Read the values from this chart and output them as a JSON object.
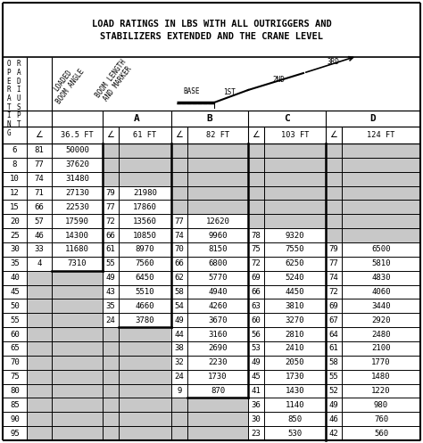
{
  "title_line1": "LOAD RATINGS IN LBS WITH ALL OUTRIGGERS AND",
  "title_line2": "STABILIZERS EXTENDED AND THE CRANE LEVEL",
  "row_labels": [
    6,
    8,
    10,
    12,
    15,
    20,
    25,
    30,
    35,
    40,
    45,
    50,
    55,
    60,
    65,
    70,
    75,
    80,
    85,
    90,
    95
  ],
  "data": [
    [
      81,
      50000,
      null,
      null,
      null,
      null,
      null,
      null,
      null,
      null
    ],
    [
      77,
      37620,
      null,
      null,
      null,
      null,
      null,
      null,
      null,
      null
    ],
    [
      74,
      31480,
      null,
      null,
      null,
      null,
      null,
      null,
      null,
      null
    ],
    [
      71,
      27130,
      79,
      21980,
      null,
      null,
      null,
      null,
      null,
      null
    ],
    [
      66,
      22530,
      77,
      17860,
      null,
      null,
      null,
      null,
      null,
      null
    ],
    [
      57,
      17590,
      72,
      13560,
      77,
      12620,
      null,
      null,
      null,
      null
    ],
    [
      46,
      14300,
      66,
      10850,
      74,
      9960,
      78,
      9320,
      null,
      null
    ],
    [
      33,
      11680,
      61,
      8970,
      70,
      8150,
      75,
      7550,
      79,
      6500
    ],
    [
      4,
      7310,
      55,
      7560,
      66,
      6800,
      72,
      6250,
      77,
      5810
    ],
    [
      null,
      null,
      49,
      6450,
      62,
      5770,
      69,
      5240,
      74,
      4830
    ],
    [
      null,
      null,
      43,
      5510,
      58,
      4940,
      66,
      4450,
      72,
      4060
    ],
    [
      null,
      null,
      35,
      4660,
      54,
      4260,
      63,
      3810,
      69,
      3440
    ],
    [
      null,
      null,
      24,
      3780,
      49,
      3670,
      60,
      3270,
      67,
      2920
    ],
    [
      null,
      null,
      null,
      null,
      44,
      3160,
      56,
      2810,
      64,
      2480
    ],
    [
      null,
      null,
      null,
      null,
      38,
      2690,
      53,
      2410,
      61,
      2100
    ],
    [
      null,
      null,
      null,
      null,
      32,
      2230,
      49,
      2050,
      58,
      1770
    ],
    [
      null,
      null,
      null,
      null,
      24,
      1730,
      45,
      1730,
      55,
      1480
    ],
    [
      null,
      null,
      null,
      null,
      9,
      870,
      41,
      1430,
      52,
      1220
    ],
    [
      null,
      null,
      null,
      null,
      null,
      null,
      36,
      1140,
      49,
      980
    ],
    [
      null,
      null,
      null,
      null,
      null,
      null,
      30,
      850,
      46,
      760
    ],
    [
      null,
      null,
      null,
      null,
      null,
      null,
      23,
      530,
      42,
      560
    ]
  ],
  "shade_color": "#c8c8c8",
  "border_color": "#000000",
  "bg_color": "#ffffff",
  "col_letters": [
    "A",
    "B",
    "C",
    "D"
  ],
  "col_fts": [
    "36.5 FT",
    "61 FT",
    "82 FT",
    "103 FT",
    "124 FT"
  ],
  "op_letters": [
    "O",
    "P",
    "E",
    "R",
    "A",
    "T",
    "I",
    "N",
    "G"
  ],
  "rad_letters": [
    "R",
    "A",
    "D",
    "I",
    "U",
    "S",
    "P",
    "T"
  ]
}
